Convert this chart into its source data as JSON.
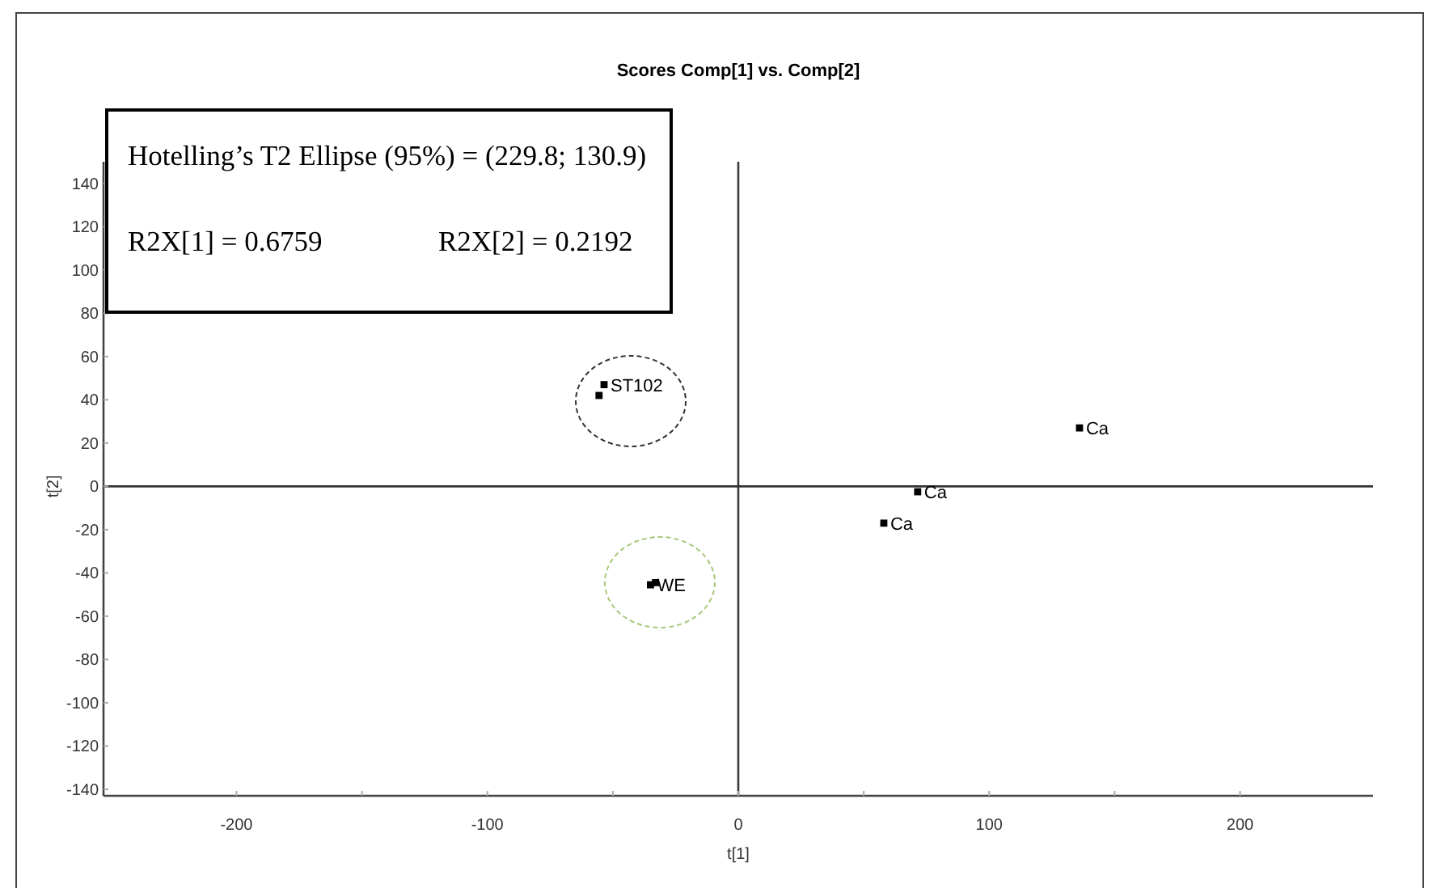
{
  "chart_data": {
    "type": "scatter",
    "title": "Scores Comp[1] vs. Comp[2]",
    "xlabel": "t[1]",
    "ylabel": "t[2]",
    "xlim": [
      -253,
      253
    ],
    "ylim": [
      -143,
      150
    ],
    "xticks": [
      -200,
      {
        "value": -150,
        "label": null
      },
      -100,
      {
        "value": -50,
        "label": null
      },
      0,
      {
        "value": 50,
        "label": null
      },
      100,
      {
        "value": 150,
        "label": null
      },
      200
    ],
    "yticks": [
      -140,
      -120,
      -100,
      -80,
      -60,
      -40,
      -20,
      0,
      20,
      40,
      60,
      80,
      100,
      120,
      140
    ],
    "marker": "square",
    "grid": false,
    "series": [
      {
        "name": "ST102",
        "color": "#000000",
        "x": [
          -53.5,
          -55.5
        ],
        "values": [
          47,
          42
        ]
      },
      {
        "name": "WE",
        "color": "#000000",
        "x": [
          -35,
          -33
        ],
        "values": [
          -45.5,
          -44.5
        ]
      },
      {
        "name": "Ca",
        "color": "#000000",
        "x": [
          136,
          71.5,
          58
        ],
        "values": [
          27,
          -2.5,
          -17
        ]
      }
    ],
    "ref_lines": [
      {
        "axis": "x",
        "value": 0,
        "color": "#3a3a3a"
      },
      {
        "axis": "y",
        "value": 0,
        "color": "#333333"
      }
    ],
    "annotations": [
      "Hotelling’s T2 Ellipse (95%) = (229.8; 130.9)",
      "R2X[1] = 0.6759",
      "R2X[2] = 0.2192"
    ]
  }
}
